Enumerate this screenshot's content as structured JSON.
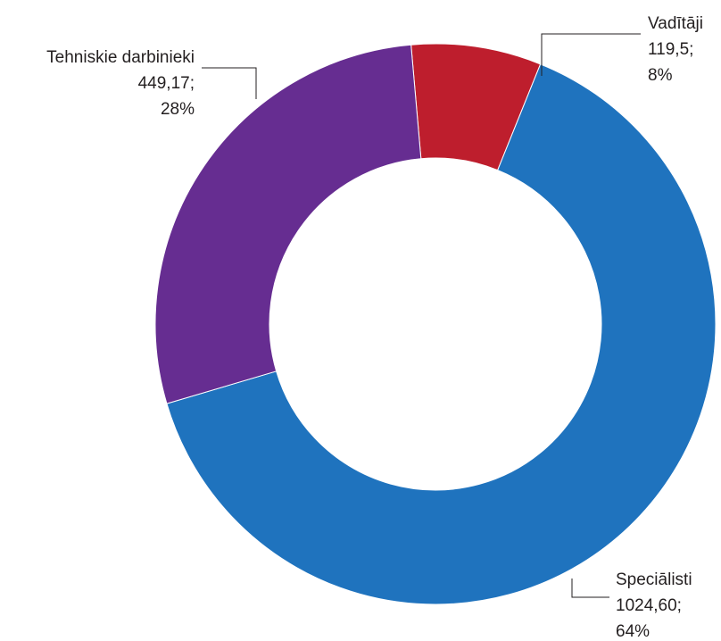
{
  "chart_data": {
    "type": "pie",
    "subtype": "donut",
    "slices": [
      {
        "name": "Vadītāji",
        "value": 119.5,
        "value_label": "119,5;",
        "percent_label": "8%",
        "color": "#be1e2d"
      },
      {
        "name": "Speciālisti",
        "value": 1024.6,
        "value_label": "1024,60;",
        "percent_label": "64%",
        "color": "#1f73be"
      },
      {
        "name": "Tehniskie darbinieki",
        "value": 449.17,
        "value_label": "449,17;",
        "percent_label": "28%",
        "color": "#662d91"
      }
    ]
  }
}
